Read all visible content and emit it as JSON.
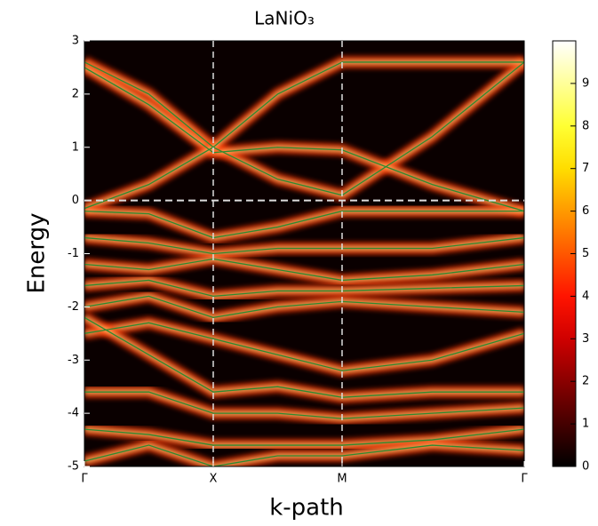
{
  "chart_data": {
    "type": "spectral",
    "title": "LaNiO₃",
    "xlabel": "k-path",
    "ylabel": "Energy",
    "xlim": [
      0,
      3.414
    ],
    "xticks": [
      {
        "value": 0,
        "label": "Γ"
      },
      {
        "value": 1,
        "label": "X"
      },
      {
        "value": 2,
        "label": "M"
      },
      {
        "value": 3.414,
        "label": "Γ"
      }
    ],
    "ylim": [
      -5,
      3
    ],
    "yticks": [
      -5,
      -4,
      -3,
      -2,
      -1,
      0,
      1,
      2,
      3
    ],
    "hline": 0,
    "cmap": "hot",
    "clim": [
      0,
      10
    ],
    "cticks": [
      0,
      1,
      2,
      3,
      4,
      5,
      6,
      7,
      8,
      9
    ],
    "band_color": "#2f8a2f",
    "x": [
      0,
      0.5,
      1,
      1.5,
      2,
      2.7,
      3.414
    ],
    "series": [
      {
        "values": [
          2.6,
          2.0,
          1.0,
          0.4,
          0.1,
          1.2,
          2.6
        ]
      },
      {
        "values": [
          2.5,
          1.8,
          0.9,
          1.0,
          0.95,
          0.3,
          -0.2
        ]
      },
      {
        "values": [
          -0.15,
          0.3,
          1.0,
          2.0,
          2.6,
          2.6,
          2.6
        ]
      },
      {
        "values": [
          -0.2,
          -0.25,
          -0.7,
          -0.5,
          -0.2,
          -0.2,
          -0.2
        ]
      },
      {
        "values": [
          -0.7,
          -0.8,
          -1.0,
          -0.9,
          -0.9,
          -0.9,
          -0.7
        ]
      },
      {
        "values": [
          -1.2,
          -1.3,
          -1.1,
          -1.3,
          -1.5,
          -1.4,
          -1.2
        ]
      },
      {
        "values": [
          -1.6,
          -1.5,
          -1.8,
          -1.7,
          -1.7,
          -1.65,
          -1.6
        ]
      },
      {
        "values": [
          -2.0,
          -1.8,
          -2.2,
          -2.0,
          -1.9,
          -2.0,
          -2.1
        ]
      },
      {
        "values": [
          -2.5,
          -2.3,
          -2.6,
          -2.9,
          -3.2,
          -3.0,
          -2.5
        ]
      },
      {
        "values": [
          -2.2,
          -2.9,
          -3.6,
          -3.5,
          -3.7,
          -3.6,
          -3.6
        ]
      },
      {
        "values": [
          -3.6,
          -3.6,
          -4.0,
          -4.0,
          -4.1,
          -4.0,
          -3.9
        ]
      },
      {
        "values": [
          -4.3,
          -4.4,
          -4.6,
          -4.6,
          -4.6,
          -4.5,
          -4.3
        ]
      },
      {
        "values": [
          -4.9,
          -4.6,
          -5.0,
          -4.8,
          -4.8,
          -4.6,
          -4.7
        ]
      }
    ]
  }
}
